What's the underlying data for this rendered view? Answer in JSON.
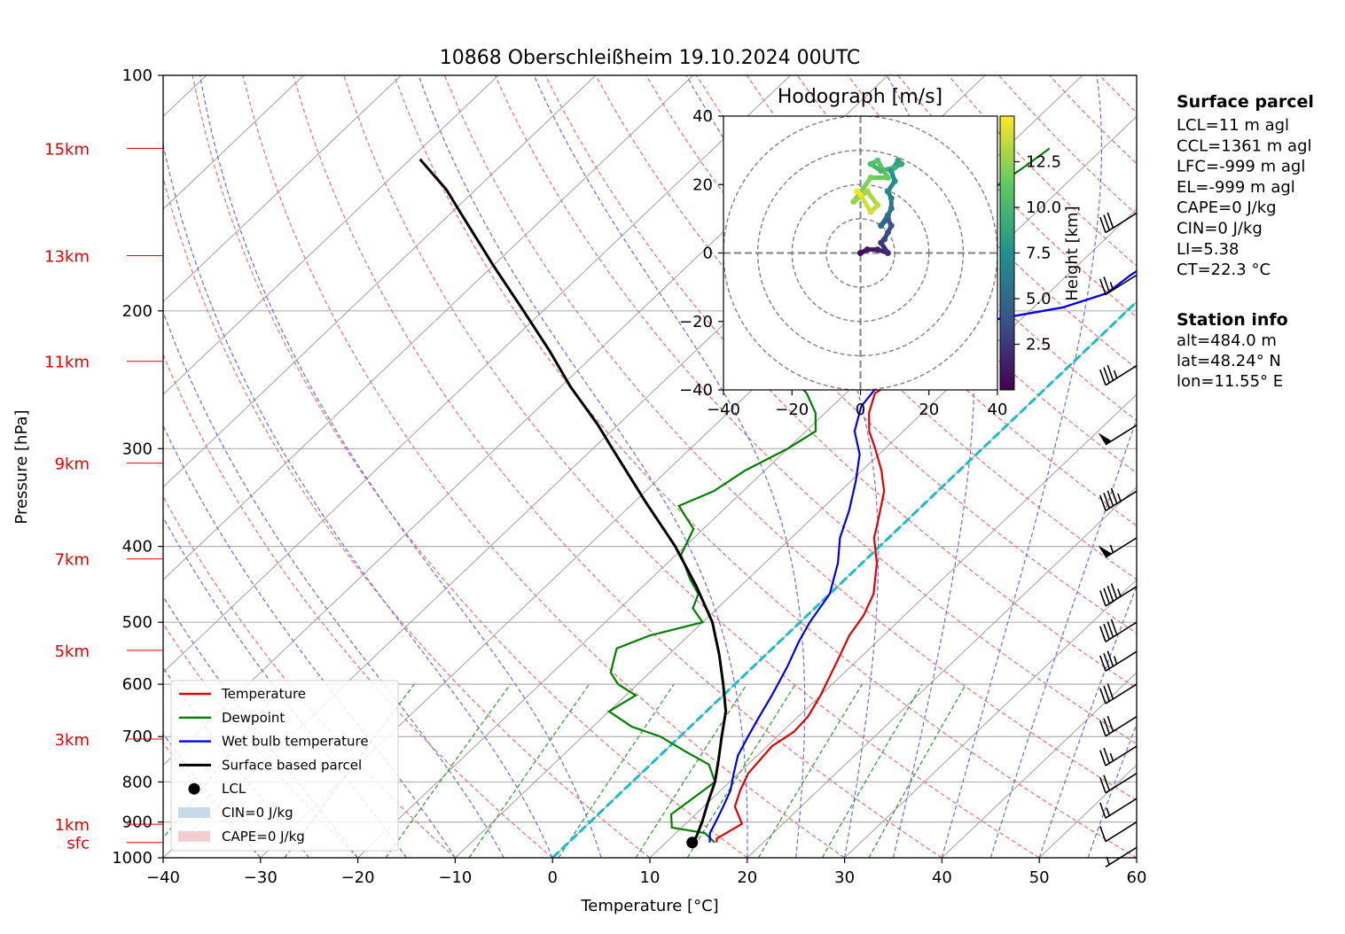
{
  "title": "10868 Oberschleißheim 19.10.2024 00UTC",
  "chart_data": [
    {
      "type": "line",
      "subtype": "skew-t log-p diagram",
      "xlabel": "Temperature [°C]",
      "ylabel": "Pressure [hPa]",
      "xlim": [
        -40,
        60
      ],
      "ylim": [
        1000,
        100
      ],
      "yscale": "log",
      "x_ticks": [
        -40,
        -30,
        -20,
        -10,
        0,
        10,
        20,
        30,
        40,
        50,
        60
      ],
      "x_tick_labels": [
        "−40",
        "−30",
        "−20",
        "−10",
        "0",
        "10",
        "20",
        "30",
        "40",
        "50",
        "60"
      ],
      "y_ticks": [
        1000,
        900,
        800,
        700,
        600,
        500,
        400,
        300,
        200,
        100
      ],
      "height_labels": [
        {
          "label": "sfc",
          "pressure": 956
        },
        {
          "label": "1km",
          "pressure": 906
        },
        {
          "label": "3km",
          "pressure": 705
        },
        {
          "label": "5km",
          "pressure": 543
        },
        {
          "label": "7km",
          "pressure": 415
        },
        {
          "label": "9km",
          "pressure": 313
        },
        {
          "label": "11km",
          "pressure": 232
        },
        {
          "label": "13km",
          "pressure": 170
        },
        {
          "label": "15km",
          "pressure": 124
        }
      ],
      "grid": true,
      "series": [
        {
          "name": "Temperature",
          "color": "#e00000",
          "points": [
            [
              15.2,
              956
            ],
            [
              14.8,
              945
            ],
            [
              15.8,
              905
            ],
            [
              13.2,
              860
            ],
            [
              12.0,
              820
            ],
            [
              11.0,
              780
            ],
            [
              10.5,
              720
            ],
            [
              11.2,
              690
            ],
            [
              11.0,
              660
            ],
            [
              10.0,
              620
            ],
            [
              8.0,
              560
            ],
            [
              6.5,
              520
            ],
            [
              5.8,
              490
            ],
            [
              4.5,
              460
            ],
            [
              1.5,
              420
            ],
            [
              -1.5,
              390
            ],
            [
              -3.0,
              370
            ],
            [
              -5.5,
              340
            ],
            [
              -8.0,
              320
            ],
            [
              -11.0,
              300
            ],
            [
              -13.5,
              285
            ],
            [
              -15.5,
              270
            ],
            [
              -17.0,
              255
            ],
            [
              -16.0,
              240
            ],
            [
              -15.5,
              230
            ],
            [
              -15.0,
              218
            ],
            [
              -16.0,
              212
            ],
            [
              -14.0,
              207
            ],
            [
              -11.0,
              203
            ],
            [
              -7.0,
              198
            ],
            [
              -4.0,
              190
            ],
            [
              -3.5,
              180
            ],
            [
              -2.5,
              170
            ],
            [
              -1.5,
              160
            ],
            [
              -1.0,
              150
            ],
            [
              -0.5,
              140
            ],
            [
              0.5,
              130
            ],
            [
              2.0,
              124
            ]
          ]
        },
        {
          "name": "Dewpoint",
          "color": "#008000",
          "points": [
            [
              15.0,
              956
            ],
            [
              13.0,
              930
            ],
            [
              9.0,
              915
            ],
            [
              7.5,
              880
            ],
            [
              8.0,
              840
            ],
            [
              8.5,
              800
            ],
            [
              6.0,
              760
            ],
            [
              2.0,
              730
            ],
            [
              -2.0,
              700
            ],
            [
              -6.0,
              680
            ],
            [
              -10.0,
              650
            ],
            [
              -9.0,
              620
            ],
            [
              -12.0,
              600
            ],
            [
              -14.0,
              580
            ],
            [
              -15.0,
              560
            ],
            [
              -16.0,
              540
            ],
            [
              -14.0,
              520
            ],
            [
              -10.0,
              500
            ],
            [
              -12.5,
              480
            ],
            [
              -13.5,
              460
            ],
            [
              -16.0,
              440
            ],
            [
              -19.5,
              410
            ],
            [
              -21.0,
              380
            ],
            [
              -25.0,
              355
            ],
            [
              -23.0,
              340
            ],
            [
              -22.0,
              320
            ],
            [
              -20.0,
              300
            ],
            [
              -19.0,
              285
            ],
            [
              -21.0,
              270
            ],
            [
              -24.0,
              255
            ],
            [
              -28.0,
              240
            ],
            [
              -27.0,
              225
            ],
            [
              -20.0,
              215
            ],
            [
              -22.0,
              208
            ],
            [
              -30.0,
              200
            ],
            [
              -32.0,
              190
            ],
            [
              -31.0,
              180
            ],
            [
              -30.0,
              170
            ],
            [
              -29.0,
              160
            ],
            [
              -28.0,
              150
            ],
            [
              -27.0,
              140
            ],
            [
              -26.0,
              130
            ],
            [
              -25.5,
              124
            ]
          ]
        },
        {
          "name": "Wet bulb temperature",
          "color": "#0000ee",
          "points": [
            [
              14.5,
              956
            ],
            [
              13.5,
              930
            ],
            [
              13.0,
              905
            ],
            [
              12.0,
              860
            ],
            [
              11.0,
              820
            ],
            [
              9.5,
              780
            ],
            [
              8.0,
              740
            ],
            [
              7.0,
              700
            ],
            [
              6.0,
              660
            ],
            [
              5.0,
              620
            ],
            [
              3.5,
              570
            ],
            [
              2.0,
              530
            ],
            [
              1.0,
              500
            ],
            [
              0.0,
              460
            ],
            [
              -2.5,
              420
            ],
            [
              -5.0,
              390
            ],
            [
              -7.0,
              360
            ],
            [
              -9.5,
              330
            ],
            [
              -12.0,
              305
            ],
            [
              -15.0,
              285
            ],
            [
              -17.0,
              265
            ],
            [
              -17.5,
              250
            ],
            [
              -16.5,
              235
            ],
            [
              -16.0,
              222
            ],
            [
              -16.5,
              212
            ],
            [
              -14.0,
              207
            ],
            [
              -11.0,
              203
            ],
            [
              -7.0,
              198
            ],
            [
              -4.0,
              190
            ],
            [
              -3.5,
              180
            ],
            [
              -2.5,
              170
            ],
            [
              -1.5,
              160
            ],
            [
              -1.0,
              150
            ],
            [
              -0.5,
              140
            ],
            [
              0.5,
              130
            ],
            [
              2.0,
              124
            ]
          ]
        },
        {
          "name": "Surface based parcel",
          "color": "#000000",
          "points": [
            [
              12.7,
              956
            ],
            [
              12.5,
              940
            ],
            [
              11.5,
              900
            ],
            [
              10.0,
              850
            ],
            [
              8.5,
              800
            ],
            [
              6.5,
              750
            ],
            [
              4.3,
              700
            ],
            [
              2.0,
              650
            ],
            [
              -1.2,
              600
            ],
            [
              -4.8,
              550
            ],
            [
              -9.0,
              500
            ],
            [
              -14.5,
              450
            ],
            [
              -21.0,
              400
            ],
            [
              -29.0,
              350
            ],
            [
              -38.0,
              300
            ],
            [
              -42.0,
              280
            ],
            [
              -49.0,
              250
            ],
            [
              -55.0,
              225
            ],
            [
              -62.0,
              200
            ],
            [
              -70.0,
              175
            ],
            [
              -79.0,
              150
            ],
            [
              -83.0,
              140
            ],
            [
              -89.0,
              128
            ]
          ]
        }
      ],
      "lcl_point": [
        12.7,
        956
      ],
      "annotations": [
        "CIN=0 J/kg",
        "CAPE=0 J/kg"
      ],
      "legend": {
        "placement": "lower-left",
        "entries": [
          {
            "label": "Temperature",
            "kind": "line",
            "color": "#e00000"
          },
          {
            "label": "Dewpoint",
            "kind": "line",
            "color": "#008000"
          },
          {
            "label": "Wet bulb temperature",
            "kind": "line",
            "color": "#0000ee"
          },
          {
            "label": "Surface based parcel",
            "kind": "line",
            "color": "#000000"
          },
          {
            "label": "LCL",
            "kind": "dot",
            "color": "#000000"
          },
          {
            "label": "CIN=0 J/kg",
            "kind": "patch",
            "color": "#c6dbea"
          },
          {
            "label": "CAPE=0 J/kg",
            "kind": "patch",
            "color": "#f3cdd0"
          }
        ]
      }
    },
    {
      "type": "line",
      "subtype": "hodograph",
      "title": "Hodograph [m/s]",
      "xlim": [
        -40,
        40
      ],
      "ylim": [
        -40,
        40
      ],
      "x_ticks": [
        -40,
        -20,
        0,
        20,
        40
      ],
      "x_tick_labels": [
        "−40",
        "−20",
        "0",
        "20",
        "40"
      ],
      "y_ticks": [
        -40,
        -20,
        0,
        20,
        40
      ],
      "y_tick_labels": [
        "−40",
        "−20",
        "0",
        "20",
        "40"
      ],
      "rings": [
        10,
        20,
        30,
        40
      ],
      "colorbar": {
        "label": "Height [km]",
        "colormap": "viridis",
        "range": [
          0,
          15
        ],
        "ticks": [
          2.5,
          5.0,
          7.5,
          10.0,
          12.5
        ]
      },
      "points": [
        {
          "u": 0,
          "v": 0,
          "h": 0.5
        },
        {
          "u": 2,
          "v": 1,
          "h": 1
        },
        {
          "u": 5,
          "v": 1,
          "h": 1.5
        },
        {
          "u": 8,
          "v": 0,
          "h": 2
        },
        {
          "u": 6,
          "v": 3,
          "h": 2.5
        },
        {
          "u": 7,
          "v": 4,
          "h": 3
        },
        {
          "u": 8,
          "v": 6,
          "h": 3.5
        },
        {
          "u": 9,
          "v": 8,
          "h": 4
        },
        {
          "u": 8,
          "v": 10,
          "h": 4.5
        },
        {
          "u": 6,
          "v": 8,
          "h": 5
        },
        {
          "u": 8,
          "v": 11,
          "h": 5.5
        },
        {
          "u": 9,
          "v": 13,
          "h": 6
        },
        {
          "u": 9,
          "v": 16,
          "h": 6.5
        },
        {
          "u": 8,
          "v": 18,
          "h": 7
        },
        {
          "u": 10,
          "v": 21,
          "h": 7.5
        },
        {
          "u": 9,
          "v": 24,
          "h": 8
        },
        {
          "u": 11,
          "v": 27,
          "h": 8.5
        },
        {
          "u": 12,
          "v": 26,
          "h": 9
        },
        {
          "u": 10,
          "v": 25,
          "h": 9.5
        },
        {
          "u": 6,
          "v": 24,
          "h": 10
        },
        {
          "u": 3,
          "v": 26,
          "h": 10.5
        },
        {
          "u": 5,
          "v": 27,
          "h": 11
        },
        {
          "u": 8,
          "v": 22,
          "h": 11.5
        },
        {
          "u": 3,
          "v": 22,
          "h": 12
        },
        {
          "u": -2,
          "v": 15,
          "h": 12.5
        },
        {
          "u": 2,
          "v": 18,
          "h": 13
        },
        {
          "u": 5,
          "v": 14,
          "h": 13.5
        },
        {
          "u": 3,
          "v": 12,
          "h": 14
        },
        {
          "u": 0,
          "v": 17,
          "h": 14.5
        },
        {
          "u": -1,
          "v": 18,
          "h": 15
        }
      ]
    }
  ],
  "info": {
    "surface_parcel_title": "Surface parcel",
    "surface_parcel": [
      "LCL=11 m agl",
      "CCL=1361 m agl",
      "LFC=-999 m agl",
      "EL=-999 m agl",
      "CAPE=0 J/kg",
      "CIN=0 J/kg",
      "LI=5.38",
      "CT=22.3 °C"
    ],
    "station_title": "Station info",
    "station": [
      "alt=484.0 m",
      "lat=48.24° N",
      "lon=11.55° E"
    ]
  },
  "wind_barbs": [
    {
      "pressure": 970,
      "speed_kt": 5
    },
    {
      "pressure": 900,
      "speed_kt": 10
    },
    {
      "pressure": 840,
      "speed_kt": 15
    },
    {
      "pressure": 780,
      "speed_kt": 20
    },
    {
      "pressure": 720,
      "speed_kt": 25
    },
    {
      "pressure": 660,
      "speed_kt": 30
    },
    {
      "pressure": 600,
      "speed_kt": 30
    },
    {
      "pressure": 545,
      "speed_kt": 35
    },
    {
      "pressure": 500,
      "speed_kt": 40
    },
    {
      "pressure": 450,
      "speed_kt": 45
    },
    {
      "pressure": 390,
      "speed_kt": 55
    },
    {
      "pressure": 340,
      "speed_kt": 45
    },
    {
      "pressure": 280,
      "speed_kt": 50
    },
    {
      "pressure": 235,
      "speed_kt": 35
    },
    {
      "pressure": 180,
      "speed_kt": 25
    },
    {
      "pressure": 150,
      "speed_kt": 30
    }
  ],
  "colors": {
    "grid": "#b0b0b0",
    "isotherm": "#a0a0a0",
    "dry_adiabat": "#f07070",
    "moist_adiabat": "#6a6af0",
    "mixing_ratio": "#2a9a2a",
    "cyan_line": "#17bec8",
    "height_label": "#e00000"
  }
}
